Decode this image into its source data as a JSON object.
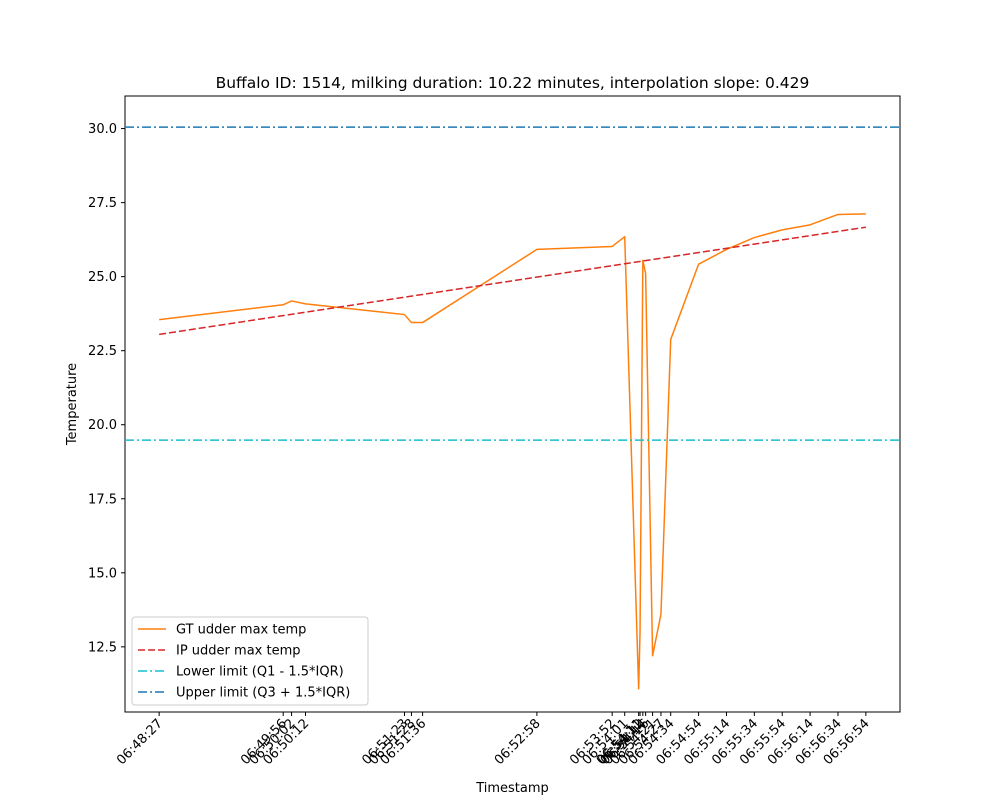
{
  "chart_data": {
    "type": "line",
    "title": "Buffalo ID: 1514, milking duration: 10.22 minutes, interpolation slope: 0.429",
    "xlabel": "Timestamp",
    "ylabel": "Temperature",
    "x_tick_labels": [
      "06:48:27",
      "06:49:56",
      "06:50:02",
      "06:50:12",
      "06:51:23",
      "06:51:28",
      "06:51:36",
      "06:52:58",
      "06:53:52",
      "06:54:01",
      "06:54:11",
      "06:54:12",
      "06:54:14",
      "06:54:16",
      "06:54:21",
      "06:54:27",
      "06:54:34",
      "06:54:54",
      "06:55:14",
      "06:55:34",
      "06:55:54",
      "06:56:14",
      "06:56:34",
      "06:56:54"
    ],
    "x_tick_seconds": [
      0,
      89,
      95,
      105,
      176,
      181,
      189,
      271,
      325,
      334,
      344,
      345,
      347,
      349,
      354,
      360,
      367,
      387,
      407,
      427,
      447,
      467,
      487,
      507
    ],
    "y_ticks": [
      12.5,
      15.0,
      17.5,
      20.0,
      22.5,
      25.0,
      27.5,
      30.0
    ],
    "xlim_seconds": [
      -24.5,
      531.5
    ],
    "ylim": [
      10.3,
      31.1
    ],
    "legend_position": "lower-left",
    "series": [
      {
        "name": "GT udder max temp",
        "color": "#ff7f0e",
        "style": "solid",
        "x_seconds": [
          0,
          89,
          95,
          105,
          176,
          181,
          189,
          271,
          325,
          334,
          344,
          345,
          347,
          349,
          354,
          360,
          367,
          387,
          407,
          427,
          447,
          467,
          487,
          507
        ],
        "values": [
          23.55,
          24.05,
          24.18,
          24.08,
          23.72,
          23.45,
          23.45,
          25.92,
          26.02,
          26.35,
          11.08,
          13.0,
          25.55,
          25.1,
          12.2,
          13.6,
          22.88,
          25.42,
          25.92,
          26.32,
          26.58,
          26.75,
          27.1,
          27.12
        ]
      },
      {
        "name": "IP udder max temp",
        "color": "#d62728",
        "style": "dashed",
        "x_seconds": [
          0,
          507
        ],
        "values": [
          23.05,
          26.67
        ]
      },
      {
        "name": "Lower limit (Q1 - 1.5*IQR)",
        "color": "#17becf",
        "style": "dashdot",
        "hline": 19.48
      },
      {
        "name": "Upper limit (Q3 + 1.5*IQR)",
        "color": "#1f77b4",
        "style": "dashdot",
        "hline": 30.05
      }
    ]
  }
}
